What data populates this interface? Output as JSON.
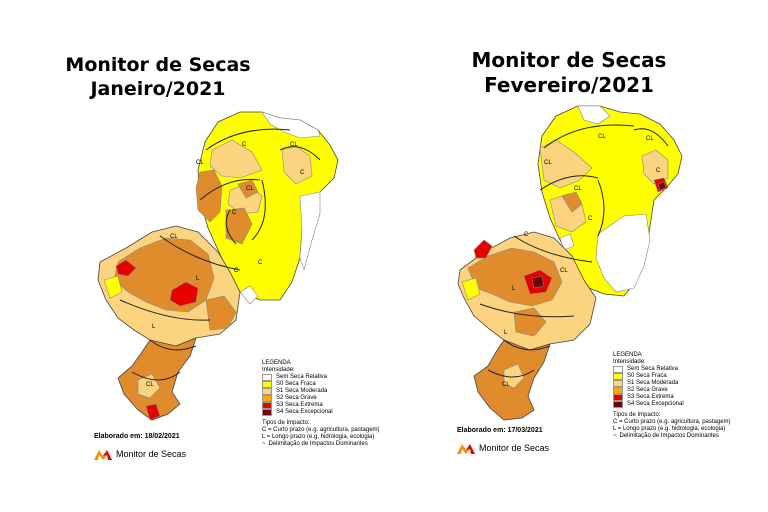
{
  "maps": [
    {
      "title_line1": "Monitor de Secas",
      "title_line2": "Janeiro/2021",
      "elaborado": "Elaborado em: 18/02/2021",
      "impact_labels": [
        "CL",
        "C",
        "CL",
        "C",
        "CL",
        "C",
        "CL",
        "C",
        "L",
        "L",
        "CL",
        "C",
        "CL",
        "CL",
        "CL",
        "CL"
      ]
    },
    {
      "title_line1": "Monitor de Secas",
      "title_line2": "Fevereiro/2021",
      "elaborado": "Elaborado em: 17/03/2021",
      "impact_labels": [
        "CL",
        "CL",
        "CL",
        "C",
        "CL",
        "C",
        "C",
        "L",
        "L",
        "CL",
        "CL",
        "CL",
        "CL",
        "CL"
      ]
    }
  ],
  "legend": {
    "title": "LEGENDA",
    "intensity_title": "Intensidade:",
    "categories": [
      {
        "label": "Sem Seca Relativa",
        "color": "#ffffff"
      },
      {
        "label": "S0 Seca Fraca",
        "color": "#ffff00"
      },
      {
        "label": "S1 Seca Moderada",
        "color": "#fcd37f"
      },
      {
        "label": "S2 Seca Grave",
        "color": "#ffaa00"
      },
      {
        "label": "S3 Seca Extrema",
        "color": "#e60000"
      },
      {
        "label": "S4 Seca Excepcional",
        "color": "#730000"
      }
    ],
    "impact_title": "Tipos de Impacto:",
    "impact_c": "C = Curto prazo (e.g. agricultura, pastagem)",
    "impact_l": "L = Longo prazo (e.g. hidrologia, ecologia)",
    "delim": "Delimitação de Impactos Dominantes"
  },
  "brand": "Monitor de Secas",
  "colors": {
    "none": "#ffffff",
    "s0": "#ffff00",
    "s1": "#fcd37f",
    "s2": "#e08b2c",
    "s3": "#e60000",
    "s4": "#730000",
    "logo_orange": "#f39200",
    "logo_red": "#e30613"
  }
}
